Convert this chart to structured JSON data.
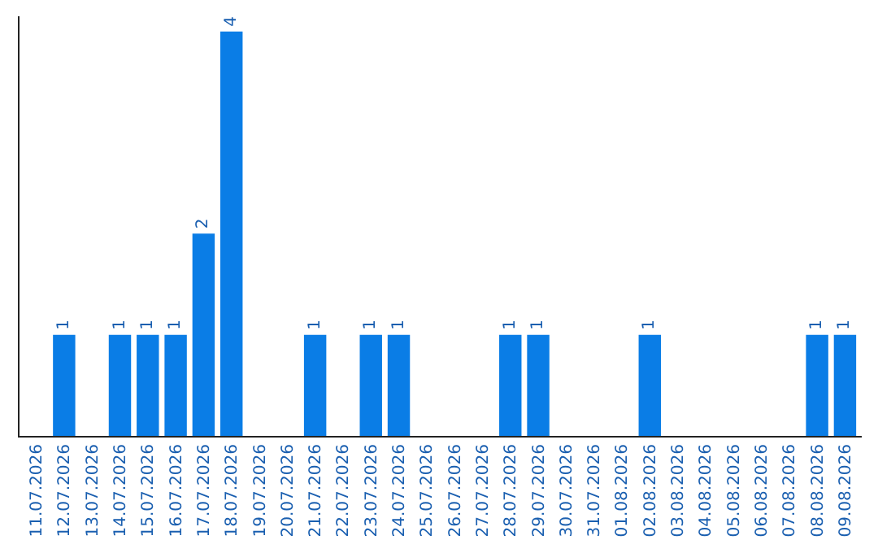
{
  "chart_data": {
    "type": "bar",
    "categories": [
      "11.07.2026",
      "12.07.2026",
      "13.07.2026",
      "14.07.2026",
      "15.07.2026",
      "16.07.2026",
      "17.07.2026",
      "18.07.2026",
      "19.07.2026",
      "20.07.2026",
      "21.07.2026",
      "22.07.2026",
      "23.07.2026",
      "24.07.2026",
      "25.07.2026",
      "26.07.2026",
      "27.07.2026",
      "28.07.2026",
      "29.07.2026",
      "30.07.2026",
      "31.07.2026",
      "01.08.2026",
      "02.08.2026",
      "03.08.2026",
      "04.08.2026",
      "05.08.2026",
      "06.08.2026",
      "07.08.2026",
      "08.08.2026",
      "09.08.2026"
    ],
    "values": [
      0,
      1,
      0,
      1,
      1,
      1,
      2,
      4,
      0,
      0,
      1,
      0,
      1,
      1,
      0,
      0,
      0,
      1,
      1,
      0,
      0,
      0,
      1,
      0,
      0,
      0,
      0,
      0,
      1,
      1
    ],
    "value_labels": [
      null,
      "1",
      null,
      "1",
      "1",
      "1",
      "2",
      "4",
      null,
      null,
      "1",
      null,
      "1",
      "1",
      null,
      null,
      null,
      "1",
      "1",
      null,
      null,
      null,
      "1",
      null,
      null,
      null,
      null,
      null,
      "1",
      "1"
    ],
    "color": "#0a7de6",
    "ylim": [
      0,
      4.15
    ],
    "tick_labels": "x",
    "legend": false
  }
}
